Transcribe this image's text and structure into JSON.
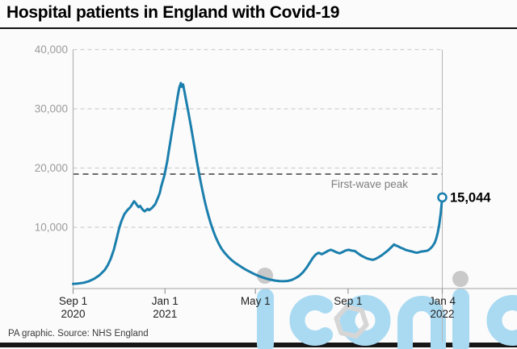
{
  "title": "Hospital patients in England with Covid-19",
  "footer": {
    "source_note": "PA graphic. Source: NHS England"
  },
  "watermark": {
    "text": "iconic",
    "color": "#aadaf2",
    "dot_color": "#c9c9c9",
    "hexagon_color": "#d6d6d6"
  },
  "colors": {
    "line": "#1b7fad",
    "grid": "#cfcfcf",
    "axis": "#b5b5b5",
    "tick": "#999999",
    "y_label": "#9b9b9b",
    "x_label": "#1f1f1f",
    "annotation": "#6b6b6b",
    "annotation_label": "#7e7e7e",
    "end_label": "#000000"
  },
  "chart_data": {
    "type": "line",
    "title": "Hospital patients in England with Covid-19",
    "x_unit": "days since 1 Sep 2020",
    "ylim": [
      0,
      40000
    ],
    "grid": "dashed-horizontal",
    "y_ticks": [
      {
        "value": 10000,
        "label": "10,000"
      },
      {
        "value": 20000,
        "label": "20,000"
      },
      {
        "value": 30000,
        "label": "30,000"
      },
      {
        "value": 40000,
        "label": "40,000"
      }
    ],
    "x_ticks": [
      {
        "day": 0,
        "lines": [
          "Sep 1",
          "2020"
        ]
      },
      {
        "day": 122,
        "lines": [
          "Jan 1",
          "2021"
        ]
      },
      {
        "day": 242,
        "lines": [
          "May 1"
        ]
      },
      {
        "day": 365,
        "lines": [
          "Sep 1"
        ]
      },
      {
        "day": 490,
        "lines": [
          "Jan 4",
          "2022"
        ]
      }
    ],
    "annotation_line": {
      "label": "First-wave peak",
      "value": 18974
    },
    "end_point": {
      "day": 490,
      "value": 15044,
      "label": "15,044"
    },
    "series": [
      {
        "name": "Hospital patients",
        "points": [
          [
            0,
            450
          ],
          [
            7,
            520
          ],
          [
            14,
            640
          ],
          [
            21,
            900
          ],
          [
            28,
            1300
          ],
          [
            35,
            1900
          ],
          [
            42,
            2800
          ],
          [
            46,
            3600
          ],
          [
            50,
            4700
          ],
          [
            54,
            6200
          ],
          [
            58,
            8200
          ],
          [
            61,
            9800
          ],
          [
            64,
            11000
          ],
          [
            68,
            12200
          ],
          [
            72,
            12900
          ],
          [
            76,
            13400
          ],
          [
            79,
            14000
          ],
          [
            81,
            14400
          ],
          [
            83,
            14100
          ],
          [
            85,
            13700
          ],
          [
            87,
            13400
          ],
          [
            89,
            13600
          ],
          [
            91,
            13200
          ],
          [
            93,
            12900
          ],
          [
            95,
            12700
          ],
          [
            97,
            12900
          ],
          [
            99,
            13100
          ],
          [
            101,
            12900
          ],
          [
            103,
            13100
          ],
          [
            105,
            13300
          ],
          [
            107,
            13600
          ],
          [
            109,
            13900
          ],
          [
            111,
            14500
          ],
          [
            113,
            15100
          ],
          [
            115,
            15800
          ],
          [
            117,
            16900
          ],
          [
            119,
            17800
          ],
          [
            121,
            18700
          ],
          [
            123,
            19900
          ],
          [
            125,
            21200
          ],
          [
            127,
            22800
          ],
          [
            129,
            24400
          ],
          [
            131,
            26000
          ],
          [
            133,
            27500
          ],
          [
            135,
            29000
          ],
          [
            137,
            30700
          ],
          [
            139,
            32200
          ],
          [
            141,
            33600
          ],
          [
            143,
            34336
          ],
          [
            144,
            33700
          ],
          [
            145,
            33950
          ],
          [
            146,
            34100
          ],
          [
            147,
            33400
          ],
          [
            148,
            32800
          ],
          [
            150,
            31400
          ],
          [
            153,
            29400
          ],
          [
            156,
            27300
          ],
          [
            159,
            25100
          ],
          [
            162,
            22800
          ],
          [
            165,
            20600
          ],
          [
            168,
            18500
          ],
          [
            171,
            16600
          ],
          [
            174,
            14800
          ],
          [
            177,
            13200
          ],
          [
            180,
            11800
          ],
          [
            183,
            10500
          ],
          [
            186,
            9400
          ],
          [
            189,
            8400
          ],
          [
            193,
            7300
          ],
          [
            197,
            6400
          ],
          [
            201,
            5700
          ],
          [
            206,
            5000
          ],
          [
            211,
            4400
          ],
          [
            216,
            3900
          ],
          [
            221,
            3500
          ],
          [
            227,
            3000
          ],
          [
            233,
            2600
          ],
          [
            239,
            2200
          ],
          [
            244,
            1900
          ],
          [
            250,
            1600
          ],
          [
            256,
            1350
          ],
          [
            262,
            1150
          ],
          [
            268,
            1000
          ],
          [
            274,
            930
          ],
          [
            280,
            900
          ],
          [
            285,
            950
          ],
          [
            290,
            1100
          ],
          [
            295,
            1400
          ],
          [
            300,
            1800
          ],
          [
            305,
            2400
          ],
          [
            310,
            3200
          ],
          [
            314,
            4000
          ],
          [
            318,
            4800
          ],
          [
            322,
            5400
          ],
          [
            326,
            5700
          ],
          [
            330,
            5450
          ],
          [
            334,
            5700
          ],
          [
            338,
            6000
          ],
          [
            342,
            6200
          ],
          [
            346,
            6000
          ],
          [
            350,
            5750
          ],
          [
            354,
            5600
          ],
          [
            358,
            5850
          ],
          [
            362,
            6100
          ],
          [
            366,
            6200
          ],
          [
            370,
            6050
          ],
          [
            374,
            6000
          ],
          [
            378,
            5600
          ],
          [
            382,
            5250
          ],
          [
            386,
            5000
          ],
          [
            390,
            4750
          ],
          [
            394,
            4600
          ],
          [
            398,
            4500
          ],
          [
            402,
            4700
          ],
          [
            406,
            5000
          ],
          [
            410,
            5300
          ],
          [
            414,
            5700
          ],
          [
            418,
            6100
          ],
          [
            422,
            6600
          ],
          [
            426,
            7100
          ],
          [
            429,
            6900
          ],
          [
            432,
            6750
          ],
          [
            435,
            6550
          ],
          [
            438,
            6400
          ],
          [
            441,
            6200
          ],
          [
            444,
            6100
          ],
          [
            447,
            6000
          ],
          [
            450,
            5900
          ],
          [
            453,
            5800
          ],
          [
            456,
            5700
          ],
          [
            459,
            5800
          ],
          [
            462,
            5900
          ],
          [
            465,
            5950
          ],
          [
            468,
            6000
          ],
          [
            471,
            6100
          ],
          [
            474,
            6400
          ],
          [
            477,
            6800
          ],
          [
            480,
            7400
          ],
          [
            482,
            8100
          ],
          [
            484,
            9100
          ],
          [
            486,
            10500
          ],
          [
            488,
            12400
          ],
          [
            490,
            15044
          ]
        ]
      }
    ]
  }
}
